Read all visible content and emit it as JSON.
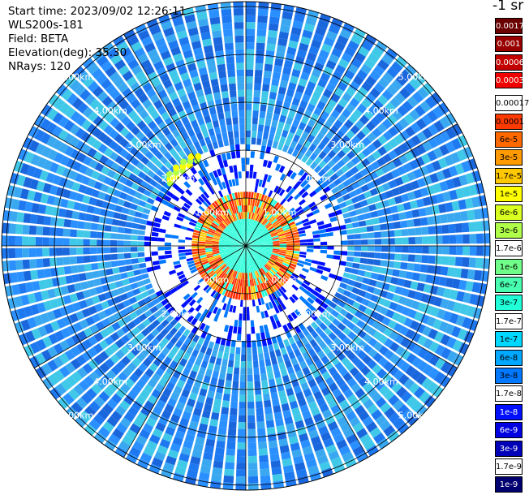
{
  "info": {
    "start_time": "Start time: 2023/09/02 12:26:11",
    "instrument": "WLS200s-181",
    "field": "Field: BETA",
    "elevation": "Elevation(deg): 35.30",
    "nrays": "NRays: 120"
  },
  "unit_label": "-1 sr",
  "legend": [
    {
      "label": "0.0017",
      "color": "#6b0000",
      "text_color": "#ffffff"
    },
    {
      "label": "0.001",
      "color": "#990000",
      "text_color": "#ffffff"
    },
    {
      "label": "0.0006",
      "color": "#c20000",
      "text_color": "#ffffff"
    },
    {
      "label": "0.0003",
      "color": "#f00000",
      "text_color": "#ffffff"
    },
    {
      "label": "0.00017",
      "color": "#ffffff",
      "text_color": "#000000"
    },
    {
      "label": "0.0001",
      "color": "#ff3a00",
      "text_color": "#000000"
    },
    {
      "label": "6e-5",
      "color": "#ff6a00",
      "text_color": "#000000"
    },
    {
      "label": "3e-5",
      "color": "#ff9a00",
      "text_color": "#000000"
    },
    {
      "label": "1.7e-5",
      "color": "#ffc800",
      "text_color": "#000000"
    },
    {
      "label": "1e-5",
      "color": "#ffff00",
      "text_color": "#000000"
    },
    {
      "label": "6e-6",
      "color": "#d8ff20",
      "text_color": "#000000"
    },
    {
      "label": "3e-6",
      "color": "#b0ff48",
      "text_color": "#000000"
    },
    {
      "label": "1.7e-6",
      "color": "#ffffff",
      "text_color": "#000000"
    },
    {
      "label": "1e-6",
      "color": "#70ff88",
      "text_color": "#000000"
    },
    {
      "label": "6e-7",
      "color": "#48ffb0",
      "text_color": "#000000"
    },
    {
      "label": "3e-7",
      "color": "#20ffd8",
      "text_color": "#000000"
    },
    {
      "label": "1.7e-7",
      "color": "#ffffff",
      "text_color": "#000000"
    },
    {
      "label": "1e-7",
      "color": "#00d8ff",
      "text_color": "#000000"
    },
    {
      "label": "6e-8",
      "color": "#00a8ff",
      "text_color": "#000000"
    },
    {
      "label": "3e-8",
      "color": "#0078ff",
      "text_color": "#000000"
    },
    {
      "label": "1.7e-8",
      "color": "#ffffff",
      "text_color": "#000000"
    },
    {
      "label": "1e-8",
      "color": "#0010ff",
      "text_color": "#ffffff"
    },
    {
      "label": "6e-9",
      "color": "#0000e0",
      "text_color": "#ffffff"
    },
    {
      "label": "3e-9",
      "color": "#0000b8",
      "text_color": "#ffffff"
    },
    {
      "label": "1.7e-9",
      "color": "#ffffff",
      "text_color": "#000000"
    },
    {
      "label": "1e-9",
      "color": "#000070",
      "text_color": "#ffffff"
    }
  ],
  "range_labels": [
    "1.00km",
    "2.00km",
    "3.00km",
    "4.00km",
    "5.00km"
  ],
  "palette": {
    "background": "#ffffff",
    "field_main": [
      "#1e78f0",
      "#1a66dc",
      "#2a90ff",
      "#3aa8f0",
      "#40c8e8"
    ],
    "near_ring": "#ff2a00",
    "grid": "#000000",
    "label": "#ffffff"
  }
}
